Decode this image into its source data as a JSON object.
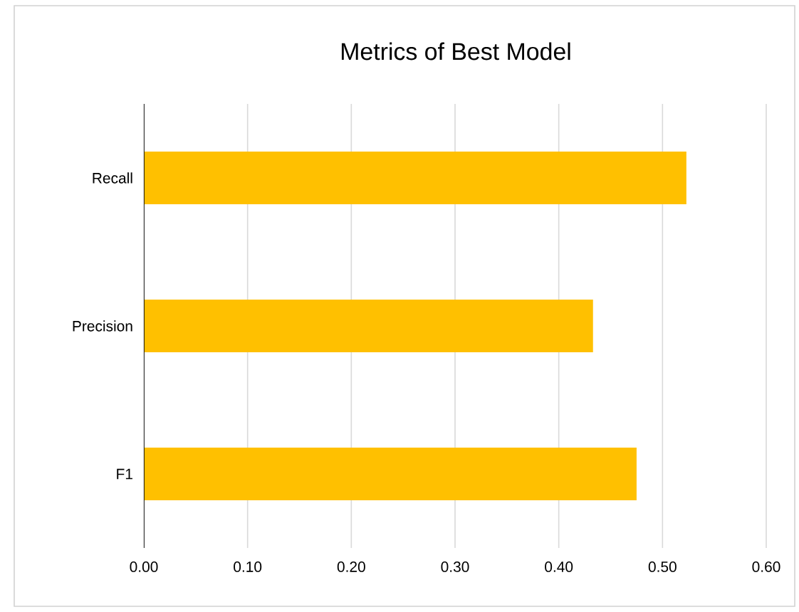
{
  "chart_data": {
    "type": "bar",
    "orientation": "horizontal",
    "title": "Metrics of Best Model",
    "categories": [
      "Recall",
      "Precision",
      "F1"
    ],
    "values": [
      0.523,
      0.433,
      0.475
    ],
    "color": "#ffc000",
    "xlim": [
      0,
      0.6
    ],
    "xticks": [
      {
        "value": 0,
        "label": "0.00"
      },
      {
        "value": 0.1,
        "label": "0.10"
      },
      {
        "value": 0.2,
        "label": "0.20"
      },
      {
        "value": 0.3,
        "label": "0.30"
      },
      {
        "value": 0.4,
        "label": "0.40"
      },
      {
        "value": 0.5,
        "label": "0.50"
      },
      {
        "value": 0.6,
        "label": "0.60"
      }
    ],
    "grid": "x"
  }
}
